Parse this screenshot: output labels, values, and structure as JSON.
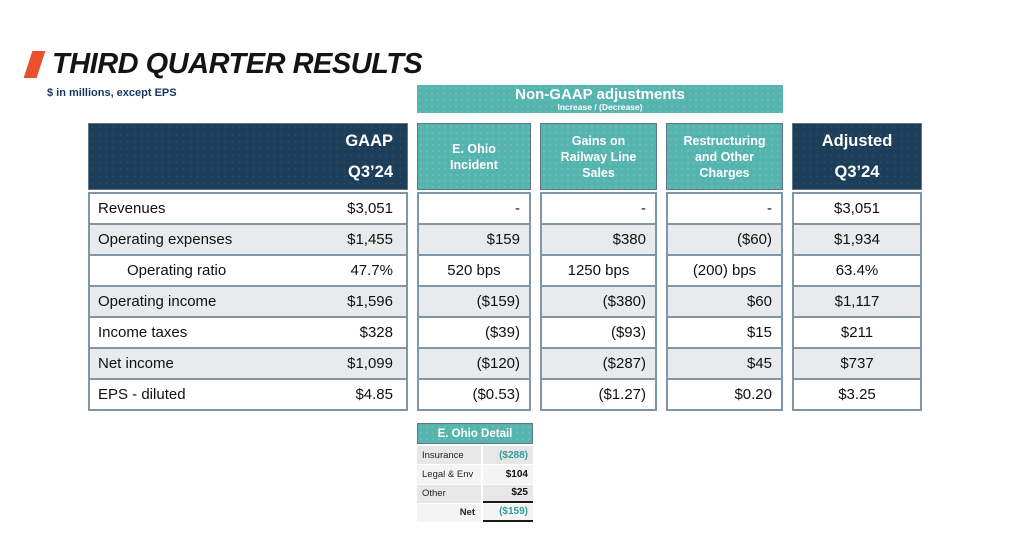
{
  "title": "THIRD QUARTER RESULTS",
  "subtitle": "$ in millions, except EPS",
  "banner": {
    "title": "Non-GAAP adjustments",
    "subtitle": "Increase / (Decrease)"
  },
  "table": {
    "gaap_header": "GAAP\nQ3’24",
    "adjusted_header": "Adjusted\nQ3’24",
    "adj_headers": [
      "E. Ohio\nIncident",
      "Gains on\nRailway Line\nSales",
      "Restructuring\nand Other\nCharges"
    ],
    "rows": [
      {
        "label": "Revenues",
        "gaap": "$3,051",
        "e_ohio": "-",
        "gains": "-",
        "restr": "-",
        "adjusted": "$3,051"
      },
      {
        "label": "Operating expenses",
        "gaap": "$1,455",
        "e_ohio": "$159",
        "gains": "$380",
        "restr": "($60)",
        "adjusted": "$1,934"
      },
      {
        "label": "Operating ratio",
        "gaap": "47.7%",
        "e_ohio": "520 bps",
        "gains": "1250 bps",
        "restr": "(200) bps",
        "adjusted": "63.4%"
      },
      {
        "label": "Operating income",
        "gaap": "$1,596",
        "e_ohio": "($159)",
        "gains": "($380)",
        "restr": "$60",
        "adjusted": "$1,117"
      },
      {
        "label": "Income taxes",
        "gaap": "$328",
        "e_ohio": "($39)",
        "gains": "($93)",
        "restr": "$15",
        "adjusted": "$211"
      },
      {
        "label": "Net income",
        "gaap": "$1,099",
        "e_ohio": "($120)",
        "gains": "($287)",
        "restr": "$45",
        "adjusted": "$737"
      },
      {
        "label": "EPS - diluted",
        "gaap": "$4.85",
        "e_ohio": "($0.53)",
        "gains": "($1.27)",
        "restr": "$0.20",
        "adjusted": "$3.25"
      }
    ]
  },
  "detail": {
    "title": "E. Ohio Detail",
    "rows": [
      {
        "label": "Insurance",
        "value": "($288)"
      },
      {
        "label": "Legal & Env",
        "value": "$104"
      },
      {
        "label": "Other",
        "value": "$25"
      },
      {
        "label": "Net",
        "value": "($159)"
      }
    ]
  },
  "colors": {
    "accent-orange": "#E8502E",
    "navy": "#1D3E59",
    "teal": "#56B4AF",
    "teal-text": "#2F9E9A",
    "border": "#7E96A9",
    "row-alt": "#E8EAEC",
    "subtitle-navy": "#17375E"
  }
}
